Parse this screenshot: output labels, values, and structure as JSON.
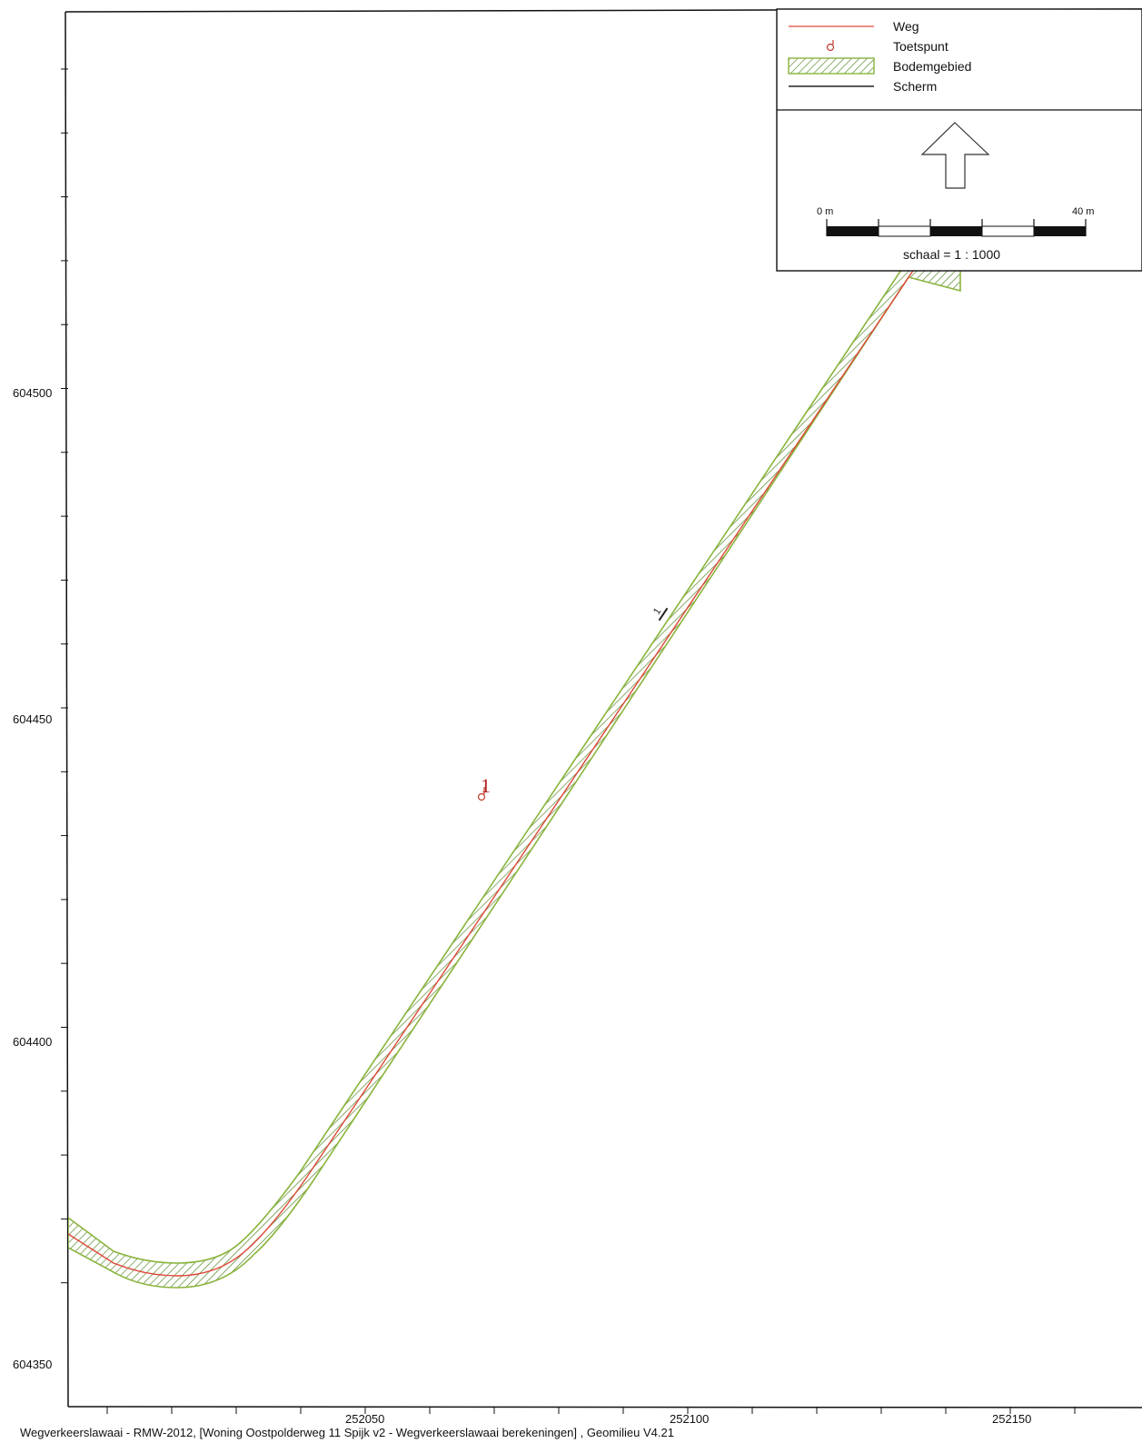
{
  "map": {
    "x_axis": {
      "tick_labels": [
        "252050",
        "252100",
        "252150"
      ]
    },
    "y_axis": {
      "tick_labels": [
        "604500",
        "604450",
        "604400",
        "604350"
      ]
    },
    "colors": {
      "road": "#e0483a",
      "area_stroke": "#8ab43c",
      "area_hatch": "#5a8a2c",
      "point": "#c0392b",
      "screen": "#222222",
      "frame": "#111111"
    },
    "road_label": "1",
    "test_point_label": "1"
  },
  "legend": {
    "items": [
      {
        "label": "Weg",
        "icon": "road-line-icon"
      },
      {
        "label": "Toetspunt",
        "icon": "test-point-icon"
      },
      {
        "label": "Bodemgebied",
        "icon": "hatched-area-icon"
      },
      {
        "label": "Scherm",
        "icon": "screen-line-icon"
      }
    ],
    "north_icon": "north-arrow-icon",
    "scalebar": {
      "left_label": "0 m",
      "right_label": "40 m",
      "caption": "schaal = 1 : 1000"
    }
  },
  "footer": {
    "text": "Wegverkeerslawaai - RMW-2012, [Woning Oostpolderweg 11 Spijk v2 - Wegverkeerslawaai berekeningen] , Geomilieu V4.21"
  }
}
